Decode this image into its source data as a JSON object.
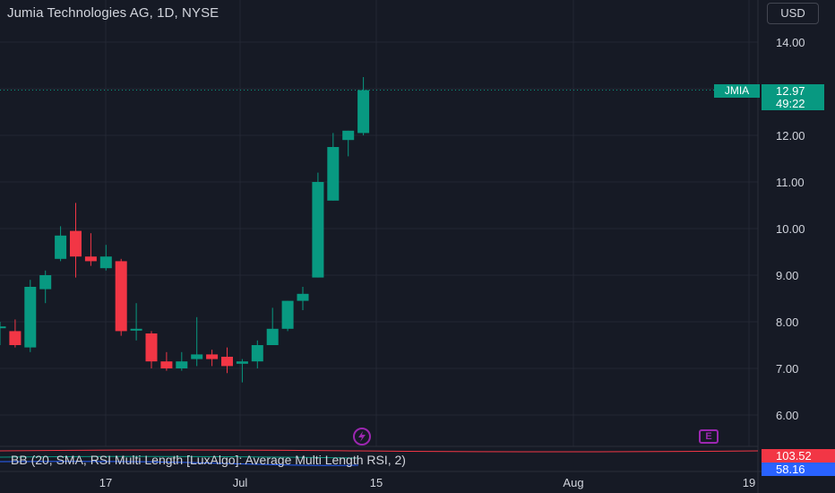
{
  "header": {
    "title": "Jumia Technologies AG, 1D, NYSE",
    "currency_button": "USD"
  },
  "price_scale": {
    "labels": [
      "14.00",
      "12.00",
      "11.00",
      "10.00",
      "9.00",
      "8.00",
      "7.00",
      "6.00"
    ],
    "last_price": "12.97",
    "countdown": "49:22",
    "symbol_tag": "JMIA"
  },
  "time_axis": {
    "labels": [
      "17",
      "Jul",
      "15",
      "Aug",
      "19"
    ]
  },
  "indicator": {
    "label": "BB (20, SMA, RSI Multi Length [LuxAlgo]: Average Multi Length RSI, 2)",
    "value_upper": "103.52",
    "value_lower": "58.16",
    "color_upper": "#f23645",
    "color_lower": "#2962ff"
  },
  "events": {
    "earnings_icon": "E",
    "dividend_icon": "lightning-icon"
  },
  "colors": {
    "background": "#161a25",
    "up": "#089981",
    "down": "#f23645",
    "grid": "#232733",
    "text": "#d1d4dc"
  },
  "chart_data": {
    "type": "candlestick",
    "title": "Jumia Technologies AG, 1D, NYSE",
    "ylim": [
      5.6,
      14.4
    ],
    "ticks": [
      6,
      7,
      8,
      9,
      10,
      11,
      12,
      13,
      14
    ],
    "last_price": 12.97,
    "candles": [
      {
        "o": 7.9,
        "h": 8.0,
        "l": 7.5,
        "c": 7.9
      },
      {
        "o": 7.8,
        "h": 8.05,
        "l": 7.45,
        "c": 7.5
      },
      {
        "o": 7.45,
        "h": 8.9,
        "l": 7.35,
        "c": 8.75
      },
      {
        "o": 8.7,
        "h": 9.1,
        "l": 8.4,
        "c": 9.0
      },
      {
        "o": 9.35,
        "h": 10.05,
        "l": 9.3,
        "c": 9.85
      },
      {
        "o": 9.95,
        "h": 10.55,
        "l": 8.95,
        "c": 9.4
      },
      {
        "o": 9.4,
        "h": 9.9,
        "l": 9.2,
        "c": 9.3
      },
      {
        "o": 9.15,
        "h": 9.65,
        "l": 9.1,
        "c": 9.4
      },
      {
        "o": 9.3,
        "h": 9.35,
        "l": 7.7,
        "c": 7.8
      },
      {
        "o": 7.85,
        "h": 8.4,
        "l": 7.6,
        "c": 7.85
      },
      {
        "o": 7.75,
        "h": 7.8,
        "l": 7.0,
        "c": 7.15
      },
      {
        "o": 7.15,
        "h": 7.35,
        "l": 6.95,
        "c": 7.0
      },
      {
        "o": 7.0,
        "h": 7.35,
        "l": 6.95,
        "c": 7.15
      },
      {
        "o": 7.2,
        "h": 8.1,
        "l": 7.05,
        "c": 7.3
      },
      {
        "o": 7.3,
        "h": 7.4,
        "l": 7.05,
        "c": 7.2
      },
      {
        "o": 7.25,
        "h": 7.45,
        "l": 6.9,
        "c": 7.05
      },
      {
        "o": 7.1,
        "h": 7.2,
        "l": 6.7,
        "c": 7.15
      },
      {
        "o": 7.15,
        "h": 7.6,
        "l": 7.0,
        "c": 7.5
      },
      {
        "o": 7.5,
        "h": 8.3,
        "l": 7.5,
        "c": 7.85
      },
      {
        "o": 7.85,
        "h": 8.45,
        "l": 7.8,
        "c": 8.45
      },
      {
        "o": 8.45,
        "h": 8.75,
        "l": 8.25,
        "c": 8.6
      },
      {
        "o": 8.95,
        "h": 11.2,
        "l": 8.95,
        "c": 11.0
      },
      {
        "o": 10.6,
        "h": 12.05,
        "l": 10.6,
        "c": 11.75
      },
      {
        "o": 11.9,
        "h": 12.1,
        "l": 11.55,
        "c": 12.1
      },
      {
        "o": 12.05,
        "h": 13.25,
        "l": 12.0,
        "c": 12.97
      }
    ]
  }
}
